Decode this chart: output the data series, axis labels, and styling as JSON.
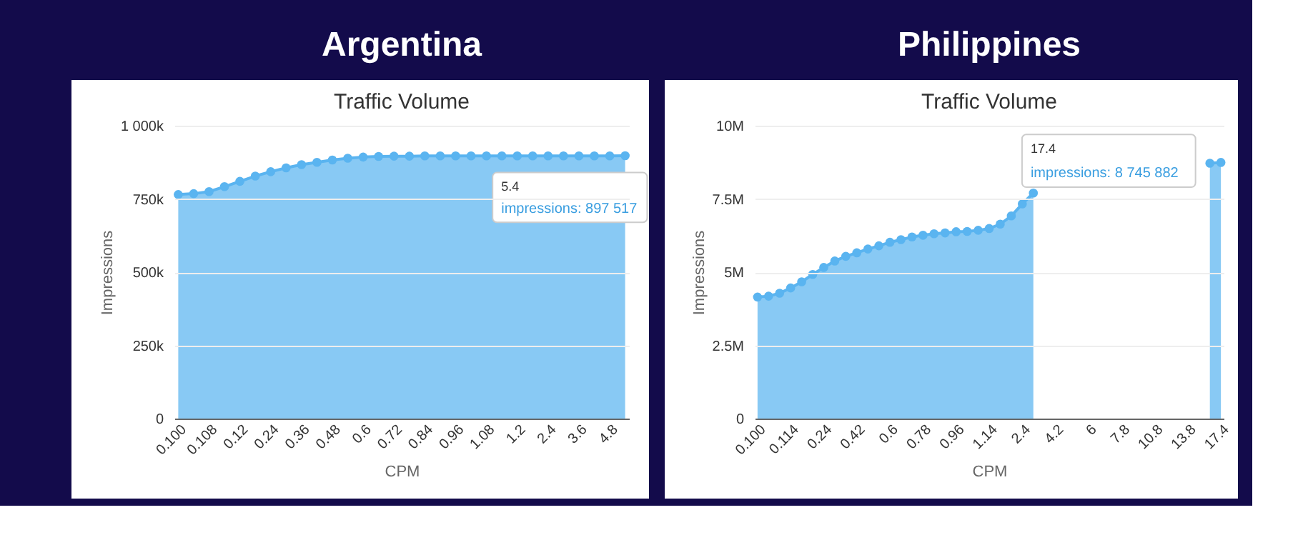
{
  "chart_data": [
    {
      "type": "area",
      "title": "Argentina",
      "subtitle": "Traffic Volume",
      "xlabel": "CPM",
      "ylabel": "Impressions",
      "marker": "circle",
      "grid": "y",
      "categories": [
        "0.100",
        null,
        "0.108",
        null,
        "0.12",
        null,
        "0.24",
        null,
        "0.36",
        null,
        "0.48",
        null,
        "0.6",
        null,
        "0.72",
        null,
        "0.84",
        null,
        "0.96",
        null,
        "1.08",
        null,
        "1.2",
        null,
        "2.4",
        null,
        "3.6",
        null,
        "4.8",
        null
      ],
      "series": [
        {
          "color": "#5ab4f0",
          "values": [
            765000,
            768000,
            775000,
            792000,
            810000,
            828000,
            843000,
            856000,
            867000,
            875000,
            883000,
            889000,
            893000,
            895000,
            896000,
            896000,
            897000,
            897000,
            897000,
            897000,
            897000,
            897000,
            897000,
            897000,
            897000,
            897000,
            897000,
            897000,
            897000,
            897517
          ]
        }
      ],
      "ylim": [
        0,
        1000000
      ],
      "yticks": [
        0,
        {
          "value": 250000,
          "label": "250k"
        },
        {
          "value": 500000,
          "label": "500k"
        },
        {
          "value": 750000,
          "label": "750k"
        },
        {
          "value": 1000000,
          "label": "1 000k"
        }
      ],
      "annotations": [
        "5.4",
        "impressions: 897 517"
      ]
    },
    {
      "type": "area",
      "title": "Philippines",
      "subtitle": "Traffic Volume",
      "xlabel": "CPM",
      "ylabel": "Impressions",
      "marker": "circle",
      "grid": "y",
      "categories": [
        "0.100",
        null,
        null,
        "0.114",
        null,
        null,
        "0.24",
        null,
        null,
        "0.42",
        null,
        null,
        "0.6",
        null,
        null,
        "0.78",
        null,
        null,
        "0.96",
        null,
        null,
        "1.14",
        null,
        null,
        "2.4",
        null,
        null,
        "4.2",
        null,
        null,
        "6",
        null,
        null,
        "7.8",
        null,
        null,
        "10.8",
        null,
        null,
        "13.8",
        null,
        null,
        "17.4"
      ],
      "series": [
        {
          "color": "#5ab4f0",
          "values": [
            4150000,
            4180000,
            4280000,
            4460000,
            4670000,
            4920000,
            5160000,
            5380000,
            5540000,
            5660000,
            5790000,
            5900000,
            6020000,
            6110000,
            6200000,
            6260000,
            6310000,
            6340000,
            6380000,
            6390000,
            6430000,
            6490000,
            6640000,
            6920000,
            7330000,
            7700000,
            null,
            null,
            null,
            null,
            null,
            null,
            null,
            null,
            null,
            null,
            null,
            null,
            null,
            null,
            null,
            8720000,
            8745882
          ]
        }
      ],
      "ylim": [
        0,
        10000000
      ],
      "yticks": [
        0,
        {
          "value": 2500000,
          "label": "2.5M"
        },
        {
          "value": 5000000,
          "label": "5M"
        },
        {
          "value": 7500000,
          "label": "7.5M"
        },
        {
          "value": 10000000,
          "label": "10M"
        }
      ],
      "annotations": [
        "17.4",
        "impressions: 8 745 882"
      ]
    }
  ]
}
